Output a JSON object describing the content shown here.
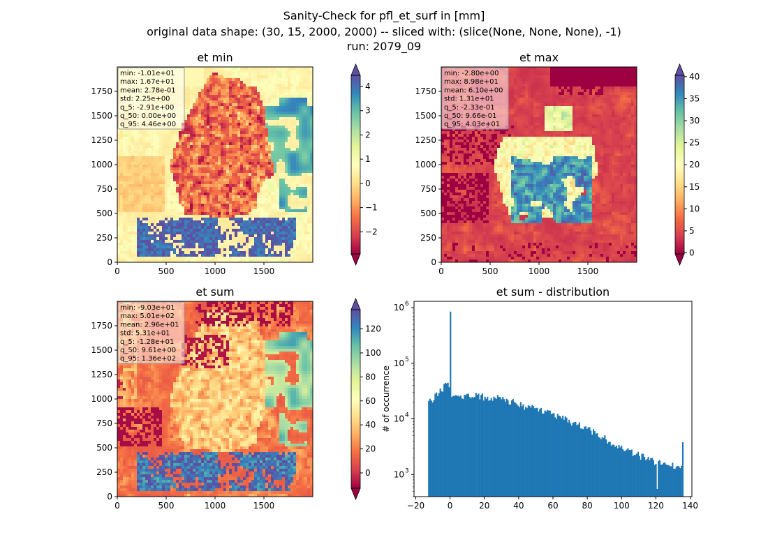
{
  "suptitle": {
    "line1": "Sanity-Check for pfl_et_surf in [mm]",
    "line2": "original data shape: (30, 15, 2000, 2000) -- sliced with: (slice(None, None, None), -1)",
    "line3": "run: 2079_09"
  },
  "panels": [
    {
      "title": "et min",
      "stats": [
        "min: -1.01e+01",
        "max: 1.67e+01",
        "mean: 2.78e-01",
        "std: 2.25e+00",
        "q_5: -2.91e+00",
        "q_50: 0.00e+00",
        "q_95: 4.46e+00"
      ],
      "colorbar": {
        "vmin": -2.91,
        "vmax": 4.46,
        "ticks": [
          -2,
          -1,
          0,
          1,
          2,
          3,
          4
        ],
        "tick_labels": [
          "−2",
          "−1",
          "0",
          "1",
          "2",
          "3",
          "4"
        ]
      },
      "pattern": "min"
    },
    {
      "title": "et max",
      "stats": [
        "min: -2.80e+00",
        "max: 8.98e+01",
        "mean: 6.10e+00",
        "std: 1.31e+01",
        "q_5: -2.33e-01",
        "q_50: 9.66e-01",
        "q_95: 4.03e+01"
      ],
      "colorbar": {
        "vmin": -0.233,
        "vmax": 40.3,
        "ticks": [
          0,
          5,
          10,
          15,
          20,
          25,
          30,
          35,
          40
        ],
        "tick_labels": [
          "0",
          "5",
          "10",
          "15",
          "20",
          "25",
          "30",
          "35",
          "40"
        ]
      },
      "pattern": "max"
    },
    {
      "title": "et sum",
      "stats": [
        "min: -9.03e+01",
        "max: 5.01e+02",
        "mean: 2.96e+01",
        "std: 5.31e+01",
        "q_5: -1.28e+01",
        "q_50: 9.61e+00",
        "q_95: 1.36e+02"
      ],
      "colorbar": {
        "vmin": -12.8,
        "vmax": 136,
        "ticks": [
          0,
          20,
          40,
          60,
          80,
          100,
          120
        ],
        "tick_labels": [
          "0",
          "20",
          "40",
          "60",
          "80",
          "100",
          "120"
        ]
      },
      "pattern": "sum"
    }
  ],
  "map_axes": {
    "x_ticks": [
      0,
      500,
      1000,
      1500
    ],
    "x_tick_labels": [
      "0",
      "500",
      "1000",
      "1500"
    ],
    "y_ticks": [
      0,
      250,
      500,
      750,
      1000,
      1250,
      1500,
      1750
    ],
    "y_tick_labels": [
      "0",
      "250",
      "500",
      "750",
      "1000",
      "1250",
      "1500",
      "1750"
    ],
    "xlim": [
      0,
      2000
    ],
    "ylim": [
      0,
      2000
    ]
  },
  "chart_data": {
    "type": "bar",
    "title": "et sum - distribution",
    "xlabel": "",
    "ylabel": "# of occurrence",
    "yscale": "log",
    "xlim": [
      -21,
      141
    ],
    "ylim": [
      400,
      1300000
    ],
    "x_ticks": [
      -20,
      0,
      20,
      40,
      60,
      80,
      100,
      120,
      140
    ],
    "x_tick_labels": [
      "−20",
      "0",
      "20",
      "40",
      "60",
      "80",
      "100",
      "120",
      "140"
    ],
    "y_ticks": [
      1000,
      10000,
      100000,
      1000000
    ],
    "y_tick_labels": [
      "10",
      "10",
      "10",
      "10"
    ],
    "y_tick_exponents": [
      "3",
      "4",
      "5",
      "6"
    ],
    "bin_range": [
      -12.8,
      136
    ],
    "bar_color": "#1f77b4",
    "spike": {
      "x": 0,
      "value": 850000
    },
    "profile": [
      {
        "x": -12.8,
        "value": 20000
      },
      {
        "x": -10,
        "value": 23000
      },
      {
        "x": -6,
        "value": 30000
      },
      {
        "x": -3,
        "value": 40000
      },
      {
        "x": -1,
        "value": 48000
      },
      {
        "x": 1,
        "value": 26000
      },
      {
        "x": 10,
        "value": 26000
      },
      {
        "x": 20,
        "value": 25000
      },
      {
        "x": 30,
        "value": 24000
      },
      {
        "x": 35,
        "value": 21000
      },
      {
        "x": 40,
        "value": 18000
      },
      {
        "x": 50,
        "value": 15000
      },
      {
        "x": 60,
        "value": 12000
      },
      {
        "x": 70,
        "value": 9000
      },
      {
        "x": 80,
        "value": 6500
      },
      {
        "x": 90,
        "value": 4500
      },
      {
        "x": 100,
        "value": 3000
      },
      {
        "x": 110,
        "value": 2200
      },
      {
        "x": 120,
        "value": 1700
      },
      {
        "x": 130,
        "value": 1400
      },
      {
        "x": 136,
        "value": 1300
      }
    ],
    "outliers": [
      {
        "x": 121,
        "value": 550
      },
      {
        "x": 135.5,
        "value": 3800
      }
    ]
  }
}
